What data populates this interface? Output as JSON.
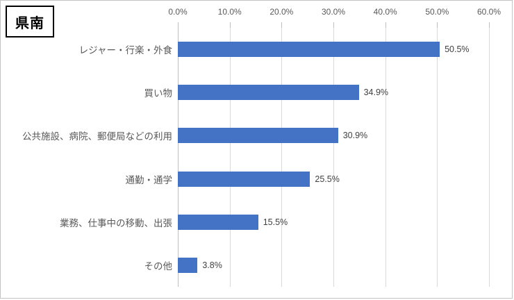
{
  "chart_data": {
    "type": "bar",
    "orientation": "horizontal",
    "title": "県南",
    "categories": [
      "レジャー・行楽・外食",
      "買い物",
      "公共施設、病院、郵便局などの利用",
      "通勤・通学",
      "業務、仕事中の移動、出張",
      "その他"
    ],
    "values": [
      50.5,
      34.9,
      30.9,
      25.5,
      15.5,
      3.8
    ],
    "data_labels": [
      "50.5%",
      "34.9%",
      "30.9%",
      "25.5%",
      "15.5%",
      "3.8%"
    ],
    "x_ticks": [
      "0.0%",
      "10.0%",
      "20.0%",
      "30.0%",
      "40.0%",
      "50.0%",
      "60.0%"
    ],
    "x_tick_values": [
      0,
      10,
      20,
      30,
      40,
      50,
      60
    ],
    "xlim": [
      0,
      60
    ],
    "xlabel": "",
    "ylabel": "",
    "grid": true,
    "legend": false,
    "axis_position": "top"
  },
  "colors": {
    "bar": "#4472c4",
    "gridline": "#d9d9d9",
    "axis_line": "#bfbfbf",
    "tick_label": "#595959",
    "category_label": "#595959",
    "data_label": "#404040",
    "title_text": "#000000",
    "title_border": "#000000",
    "background": "#ffffff"
  }
}
